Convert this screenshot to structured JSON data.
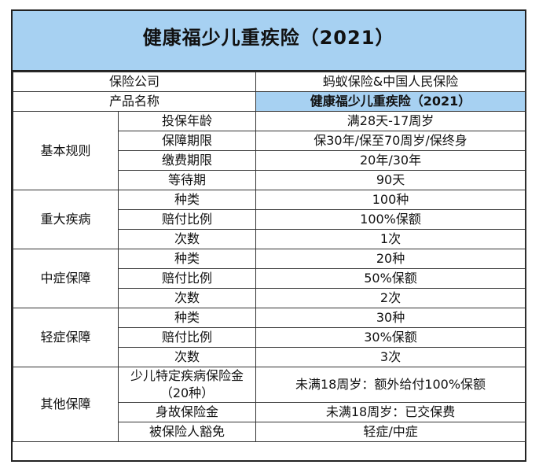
{
  "title": "健康福少儿重疾险（2021）",
  "header_rows": [
    {
      "label": "保险公司",
      "value": "蚂蚁保险&中国人民保险"
    },
    {
      "label": "产品名称",
      "value": "健康福少儿重疾险（2021）"
    }
  ],
  "groups": [
    {
      "category": "基本规则",
      "rows": [
        {
          "label": "投保年龄",
          "value": "满28天-17周岁"
        },
        {
          "label": "保障期限",
          "value": "保30年/保至70周岁/保终身"
        },
        {
          "label": "缴费期限",
          "value": "20年/30年"
        },
        {
          "label": "等待期",
          "value": "90天"
        }
      ]
    },
    {
      "category": "重大疾病",
      "rows": [
        {
          "label": "种类",
          "value": "100种"
        },
        {
          "label": "赔付比例",
          "value": "100%保额"
        },
        {
          "label": "次数",
          "value": "1次"
        }
      ]
    },
    {
      "category": "中症保障",
      "rows": [
        {
          "label": "种类",
          "value": "20种"
        },
        {
          "label": "赔付比例",
          "value": "50%保额"
        },
        {
          "label": "次数",
          "value": "2次"
        }
      ]
    },
    {
      "category": "轻症保障",
      "rows": [
        {
          "label": "种类",
          "value": "30种"
        },
        {
          "label": "赔付比例",
          "value": "30%保额"
        },
        {
          "label": "次数",
          "value": "3次"
        }
      ]
    },
    {
      "category": "其他保障",
      "rows": [
        {
          "label": "少儿特定疾病保险金（20种）",
          "value": "未满18周岁：额外给付100%保额"
        },
        {
          "label": "身故保险金",
          "value": "未满18周岁：已交保费"
        },
        {
          "label": "被保险人豁免",
          "value": "轻症/中症"
        }
      ]
    }
  ]
}
